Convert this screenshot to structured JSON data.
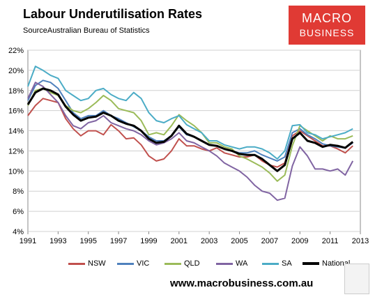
{
  "header": {
    "title": "Labour Underutilisation Rates",
    "source": "SourceAustralian Bureau of Statistics"
  },
  "logo": {
    "line1": "MACRO",
    "line2": "BUSINESS"
  },
  "footer": {
    "url": "www.macrobusiness.com.au"
  },
  "colors": {
    "NSW": "#c0504d",
    "VIC": "#4f81bd",
    "QLD": "#9bbb59",
    "WA": "#8064a2",
    "SA": "#4bacc6",
    "National": "#000000",
    "logo_bg": "#e03a34"
  },
  "chart_data": {
    "type": "line",
    "title": "Labour Underutilisation Rates",
    "xlabel": "",
    "ylabel": "",
    "xlim": [
      1991,
      2013
    ],
    "ylim": [
      4,
      22
    ],
    "x_ticks": [
      "1991",
      "1993",
      "1995",
      "1997",
      "1999",
      "2001",
      "2003",
      "2005",
      "2007",
      "2009",
      "2011",
      "2013"
    ],
    "y_ticks": [
      "4%",
      "6%",
      "8%",
      "10%",
      "12%",
      "14%",
      "16%",
      "18%",
      "20%",
      "22%"
    ],
    "grid": "horizontal",
    "legend_position": "bottom",
    "series": [
      {
        "name": "NSW",
        "points": [
          [
            1991,
            15.5
          ],
          [
            1991.5,
            16.5
          ],
          [
            1992,
            17.2
          ],
          [
            1992.5,
            17.0
          ],
          [
            1993,
            16.8
          ],
          [
            1993.5,
            15.2
          ],
          [
            1994,
            14.2
          ],
          [
            1994.5,
            13.5
          ],
          [
            1995,
            14.0
          ],
          [
            1995.5,
            14.0
          ],
          [
            1996,
            13.6
          ],
          [
            1996.5,
            14.6
          ],
          [
            1997,
            14.0
          ],
          [
            1997.5,
            13.2
          ],
          [
            1998,
            13.3
          ],
          [
            1998.5,
            12.6
          ],
          [
            1999,
            11.5
          ],
          [
            1999.5,
            11.0
          ],
          [
            2000,
            11.2
          ],
          [
            2000.5,
            12.0
          ],
          [
            2001,
            13.2
          ],
          [
            2001.5,
            12.5
          ],
          [
            2002,
            12.5
          ],
          [
            2002.5,
            12.2
          ],
          [
            2003,
            12.0
          ],
          [
            2003.5,
            12.3
          ],
          [
            2004,
            11.8
          ],
          [
            2004.5,
            11.6
          ],
          [
            2005,
            11.4
          ],
          [
            2005.5,
            11.4
          ],
          [
            2006,
            11.6
          ],
          [
            2006.5,
            11.0
          ],
          [
            2007,
            10.6
          ],
          [
            2007.5,
            10.4
          ],
          [
            2008,
            10.8
          ],
          [
            2008.5,
            13.5
          ],
          [
            2009,
            14.0
          ],
          [
            2009.5,
            13.5
          ],
          [
            2010,
            13.0
          ],
          [
            2010.5,
            12.5
          ],
          [
            2011,
            12.5
          ],
          [
            2011.5,
            12.2
          ],
          [
            2012,
            11.8
          ],
          [
            2012.5,
            12.5
          ]
        ]
      },
      {
        "name": "VIC",
        "points": [
          [
            1991,
            17.0
          ],
          [
            1991.5,
            18.5
          ],
          [
            1992,
            19.0
          ],
          [
            1992.5,
            18.8
          ],
          [
            1993,
            18.2
          ],
          [
            1993.5,
            17.0
          ],
          [
            1994,
            15.8
          ],
          [
            1994.5,
            15.2
          ],
          [
            1995,
            15.5
          ],
          [
            1995.5,
            15.5
          ],
          [
            1996,
            16.0
          ],
          [
            1996.5,
            15.5
          ],
          [
            1997,
            15.2
          ],
          [
            1997.5,
            14.8
          ],
          [
            1998,
            14.4
          ],
          [
            1998.5,
            14.0
          ],
          [
            1999,
            13.4
          ],
          [
            1999.5,
            13.0
          ],
          [
            2000,
            13.0
          ],
          [
            2000.5,
            13.5
          ],
          [
            2001,
            14.4
          ],
          [
            2001.5,
            13.6
          ],
          [
            2002,
            13.4
          ],
          [
            2002.5,
            13.0
          ],
          [
            2003,
            12.6
          ],
          [
            2003.5,
            12.5
          ],
          [
            2004,
            12.2
          ],
          [
            2004.5,
            12.0
          ],
          [
            2005,
            11.8
          ],
          [
            2005.5,
            11.8
          ],
          [
            2006,
            12.0
          ],
          [
            2006.5,
            11.6
          ],
          [
            2007,
            11.3
          ],
          [
            2007.5,
            11.0
          ],
          [
            2008,
            11.4
          ],
          [
            2008.5,
            13.8
          ],
          [
            2009,
            14.2
          ],
          [
            2009.5,
            13.6
          ],
          [
            2010,
            13.2
          ],
          [
            2010.5,
            12.7
          ],
          [
            2011,
            12.5
          ],
          [
            2011.5,
            12.4
          ],
          [
            2012,
            12.3
          ],
          [
            2012.5,
            12.8
          ]
        ]
      },
      {
        "name": "QLD",
        "points": [
          [
            1991,
            16.5
          ],
          [
            1991.5,
            18.0
          ],
          [
            1992,
            18.2
          ],
          [
            1992.5,
            17.8
          ],
          [
            1993,
            17.5
          ],
          [
            1993.5,
            16.5
          ],
          [
            1994,
            16.0
          ],
          [
            1994.5,
            15.8
          ],
          [
            1995,
            16.2
          ],
          [
            1995.5,
            16.8
          ],
          [
            1996,
            17.5
          ],
          [
            1996.5,
            17.0
          ],
          [
            1997,
            16.2
          ],
          [
            1997.5,
            16.0
          ],
          [
            1998,
            15.8
          ],
          [
            1998.5,
            15.0
          ],
          [
            1999,
            13.6
          ],
          [
            1999.5,
            13.8
          ],
          [
            2000,
            13.6
          ],
          [
            2000.5,
            14.5
          ],
          [
            2001,
            15.6
          ],
          [
            2001.5,
            15.0
          ],
          [
            2002,
            14.5
          ],
          [
            2002.5,
            13.8
          ],
          [
            2003,
            12.8
          ],
          [
            2003.5,
            12.8
          ],
          [
            2004,
            12.4
          ],
          [
            2004.5,
            12.2
          ],
          [
            2005,
            11.5
          ],
          [
            2005.5,
            11.2
          ],
          [
            2006,
            10.8
          ],
          [
            2006.5,
            10.4
          ],
          [
            2007,
            9.8
          ],
          [
            2007.5,
            9.0
          ],
          [
            2008,
            9.6
          ],
          [
            2008.5,
            12.5
          ],
          [
            2009,
            14.5
          ],
          [
            2009.5,
            14.0
          ],
          [
            2010,
            13.5
          ],
          [
            2010.5,
            13.0
          ],
          [
            2011,
            13.5
          ],
          [
            2011.5,
            13.2
          ],
          [
            2012,
            13.2
          ],
          [
            2012.5,
            13.5
          ]
        ]
      },
      {
        "name": "WA",
        "points": [
          [
            1991,
            17.2
          ],
          [
            1991.5,
            18.8
          ],
          [
            1992,
            18.4
          ],
          [
            1992.5,
            17.6
          ],
          [
            1993,
            16.8
          ],
          [
            1993.5,
            15.5
          ],
          [
            1994,
            14.5
          ],
          [
            1994.5,
            14.2
          ],
          [
            1995,
            14.8
          ],
          [
            1995.5,
            15.0
          ],
          [
            1996,
            15.5
          ],
          [
            1996.5,
            14.8
          ],
          [
            1997,
            14.5
          ],
          [
            1997.5,
            14.2
          ],
          [
            1998,
            14.0
          ],
          [
            1998.5,
            13.6
          ],
          [
            1999,
            13.0
          ],
          [
            1999.5,
            12.6
          ],
          [
            2000,
            12.8
          ],
          [
            2000.5,
            13.2
          ],
          [
            2001,
            13.8
          ],
          [
            2001.5,
            13.0
          ],
          [
            2002,
            12.8
          ],
          [
            2002.5,
            12.4
          ],
          [
            2003,
            12.0
          ],
          [
            2003.5,
            11.5
          ],
          [
            2004,
            10.8
          ],
          [
            2004.5,
            10.4
          ],
          [
            2005,
            10.0
          ],
          [
            2005.5,
            9.4
          ],
          [
            2006,
            8.6
          ],
          [
            2006.5,
            8.0
          ],
          [
            2007,
            7.8
          ],
          [
            2007.5,
            7.1
          ],
          [
            2008,
            7.3
          ],
          [
            2008.5,
            10.5
          ],
          [
            2009,
            12.4
          ],
          [
            2009.5,
            11.5
          ],
          [
            2010,
            10.2
          ],
          [
            2010.5,
            10.2
          ],
          [
            2011,
            10.0
          ],
          [
            2011.5,
            10.2
          ],
          [
            2012,
            9.6
          ],
          [
            2012.5,
            11.0
          ]
        ]
      },
      {
        "name": "SA",
        "points": [
          [
            1991,
            18.4
          ],
          [
            1991.5,
            20.4
          ],
          [
            1992,
            20.0
          ],
          [
            1992.5,
            19.5
          ],
          [
            1993,
            19.2
          ],
          [
            1993.5,
            18.0
          ],
          [
            1994,
            17.5
          ],
          [
            1994.5,
            17.0
          ],
          [
            1995,
            17.2
          ],
          [
            1995.5,
            18.0
          ],
          [
            1996,
            18.2
          ],
          [
            1996.5,
            17.6
          ],
          [
            1997,
            17.2
          ],
          [
            1997.5,
            17.0
          ],
          [
            1998,
            17.8
          ],
          [
            1998.5,
            17.2
          ],
          [
            1999,
            15.8
          ],
          [
            1999.5,
            15.0
          ],
          [
            2000,
            14.8
          ],
          [
            2000.5,
            15.2
          ],
          [
            2001,
            15.5
          ],
          [
            2001.5,
            14.6
          ],
          [
            2002,
            14.2
          ],
          [
            2002.5,
            13.8
          ],
          [
            2003,
            13.0
          ],
          [
            2003.5,
            13.0
          ],
          [
            2004,
            12.6
          ],
          [
            2004.5,
            12.4
          ],
          [
            2005,
            12.2
          ],
          [
            2005.5,
            12.4
          ],
          [
            2006,
            12.4
          ],
          [
            2006.5,
            12.2
          ],
          [
            2007,
            11.8
          ],
          [
            2007.5,
            11.2
          ],
          [
            2008,
            12.0
          ],
          [
            2008.5,
            14.5
          ],
          [
            2009,
            14.6
          ],
          [
            2009.5,
            13.8
          ],
          [
            2010,
            13.6
          ],
          [
            2010.5,
            13.2
          ],
          [
            2011,
            13.4
          ],
          [
            2011.5,
            13.6
          ],
          [
            2012,
            13.8
          ],
          [
            2012.5,
            14.2
          ]
        ]
      },
      {
        "name": "National",
        "points": [
          [
            1991,
            16.6
          ],
          [
            1991.5,
            17.8
          ],
          [
            1992,
            18.2
          ],
          [
            1992.5,
            18.0
          ],
          [
            1993,
            17.6
          ],
          [
            1993.5,
            16.4
          ],
          [
            1994,
            15.6
          ],
          [
            1994.5,
            15.0
          ],
          [
            1995,
            15.3
          ],
          [
            1995.5,
            15.4
          ],
          [
            1996,
            15.8
          ],
          [
            1996.5,
            15.5
          ],
          [
            1997,
            15.0
          ],
          [
            1997.5,
            14.7
          ],
          [
            1998,
            14.5
          ],
          [
            1998.5,
            14.0
          ],
          [
            1999,
            13.2
          ],
          [
            1999.5,
            12.8
          ],
          [
            2000,
            12.9
          ],
          [
            2000.5,
            13.5
          ],
          [
            2001,
            14.5
          ],
          [
            2001.5,
            13.7
          ],
          [
            2002,
            13.4
          ],
          [
            2002.5,
            13.0
          ],
          [
            2003,
            12.6
          ],
          [
            2003.5,
            12.5
          ],
          [
            2004,
            12.2
          ],
          [
            2004.5,
            12.0
          ],
          [
            2005,
            11.7
          ],
          [
            2005.5,
            11.6
          ],
          [
            2006,
            11.6
          ],
          [
            2006.5,
            11.2
          ],
          [
            2007,
            10.6
          ],
          [
            2007.5,
            10.0
          ],
          [
            2008,
            10.6
          ],
          [
            2008.5,
            13.2
          ],
          [
            2009,
            13.8
          ],
          [
            2009.5,
            13.0
          ],
          [
            2010,
            12.8
          ],
          [
            2010.5,
            12.4
          ],
          [
            2011,
            12.6
          ],
          [
            2011.5,
            12.5
          ],
          [
            2012,
            12.3
          ],
          [
            2012.5,
            12.9
          ]
        ]
      }
    ]
  }
}
